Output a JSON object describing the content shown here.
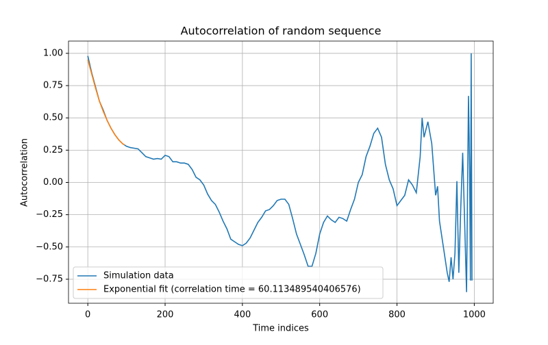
{
  "chart_data": {
    "type": "line",
    "title": "Autocorrelation of random sequence",
    "x_label": "Time indices",
    "y_label": "Autocorrelation",
    "xlim": [
      -49.95,
      1048.95
    ],
    "ylim": [
      -0.936,
      1.095
    ],
    "xticks": [
      0,
      200,
      400,
      600,
      800,
      1000
    ],
    "yticks": [
      {
        "value": -0.75,
        "label": "−0.75"
      },
      {
        "value": -0.5,
        "label": "−0.50"
      },
      {
        "value": -0.25,
        "label": "−0.25"
      },
      {
        "value": 0,
        "label": "0.00"
      },
      {
        "value": 0.25,
        "label": "0.25"
      },
      {
        "value": 0.5,
        "label": "0.50"
      },
      {
        "value": 0.75,
        "label": "0.75"
      },
      {
        "value": 1,
        "label": "1.00"
      }
    ],
    "grid": true,
    "legend": "lower left",
    "series": [
      {
        "name": "Simulation data",
        "color": "#1f77b4",
        "x": [
          0,
          10,
          20,
          30,
          40,
          50,
          60,
          70,
          80,
          90,
          100,
          110,
          120,
          130,
          140,
          150,
          160,
          170,
          180,
          190,
          200,
          210,
          220,
          230,
          240,
          250,
          260,
          270,
          280,
          290,
          300,
          310,
          320,
          330,
          340,
          350,
          360,
          370,
          380,
          390,
          400,
          410,
          420,
          430,
          440,
          450,
          460,
          470,
          480,
          490,
          500,
          510,
          520,
          530,
          540,
          550,
          560,
          570,
          580,
          590,
          600,
          610,
          620,
          630,
          640,
          650,
          660,
          670,
          680,
          690,
          700,
          710,
          720,
          730,
          740,
          750,
          760,
          770,
          780,
          790,
          800,
          810,
          820,
          830,
          840,
          850,
          860,
          865,
          870,
          880,
          890,
          900,
          905,
          910,
          920,
          930,
          935,
          940,
          945,
          950,
          955,
          960,
          965,
          970,
          975,
          980,
          985,
          988,
          990,
          992,
          994
        ],
        "values": [
          0.98,
          0.85,
          0.74,
          0.63,
          0.56,
          0.48,
          0.42,
          0.37,
          0.33,
          0.3,
          0.28,
          0.27,
          0.265,
          0.26,
          0.23,
          0.2,
          0.19,
          0.18,
          0.185,
          0.18,
          0.21,
          0.2,
          0.16,
          0.16,
          0.15,
          0.15,
          0.14,
          0.1,
          0.04,
          0.02,
          -0.02,
          -0.09,
          -0.14,
          -0.17,
          -0.23,
          -0.3,
          -0.36,
          -0.44,
          -0.46,
          -0.48,
          -0.49,
          -0.47,
          -0.43,
          -0.37,
          -0.31,
          -0.27,
          -0.22,
          -0.21,
          -0.18,
          -0.14,
          -0.13,
          -0.13,
          -0.17,
          -0.28,
          -0.4,
          -0.48,
          -0.56,
          -0.65,
          -0.65,
          -0.55,
          -0.4,
          -0.31,
          -0.26,
          -0.29,
          -0.31,
          -0.27,
          -0.28,
          -0.3,
          -0.21,
          -0.13,
          0.0,
          0.06,
          0.2,
          0.28,
          0.38,
          0.42,
          0.35,
          0.14,
          0.02,
          -0.05,
          -0.18,
          -0.14,
          -0.1,
          0.02,
          -0.02,
          -0.08,
          0.2,
          0.5,
          0.35,
          0.47,
          0.3,
          -0.1,
          -0.03,
          -0.3,
          -0.5,
          -0.7,
          -0.77,
          -0.58,
          -0.75,
          -0.55,
          0.01,
          -0.7,
          -0.2,
          0.23,
          -0.3,
          -0.85,
          0.67,
          0.1,
          -0.76,
          1.0,
          -0.76
        ]
      },
      {
        "name": "Exponential fit (correlation time = 60.113489540406576)",
        "color": "#ff7f0e",
        "x": [
          0,
          10,
          20,
          30,
          40,
          50,
          60,
          70,
          80,
          90,
          95
        ],
        "values": [
          0.95,
          0.84,
          0.73,
          0.63,
          0.55,
          0.48,
          0.42,
          0.37,
          0.33,
          0.3,
          0.29
        ]
      }
    ]
  }
}
